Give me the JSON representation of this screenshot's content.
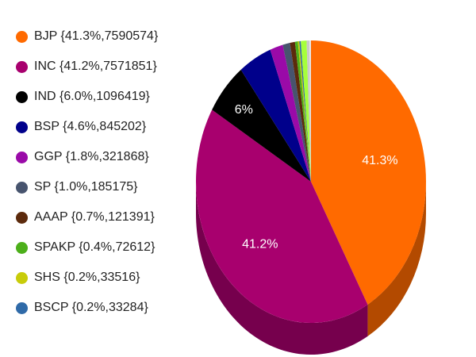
{
  "chart_data": {
    "type": "pie",
    "legend_position": "left",
    "slices": [
      {
        "label": "BJP {41.3%,7590574}",
        "party": "BJP",
        "percent": 41.3,
        "votes": 7590574,
        "color": "#ff6a00",
        "slice_label": "41.3%"
      },
      {
        "label": "INC {41.2%,7571851}",
        "party": "INC",
        "percent": 41.2,
        "votes": 7571851,
        "color": "#a8006e",
        "slice_label": "41.2%"
      },
      {
        "label": "IND {6.0%,1096419}",
        "party": "IND",
        "percent": 6.0,
        "votes": 1096419,
        "color": "#000000",
        "slice_label": "6%"
      },
      {
        "label": "BSP {4.6%,845202}",
        "party": "BSP",
        "percent": 4.6,
        "votes": 845202,
        "color": "#00008b",
        "slice_label": ""
      },
      {
        "label": "GGP {1.8%,321868}",
        "party": "GGP",
        "percent": 1.8,
        "votes": 321868,
        "color": "#9a0aa8",
        "slice_label": ""
      },
      {
        "label": "SP {1.0%,185175}",
        "party": "SP",
        "percent": 1.0,
        "votes": 185175,
        "color": "#47546e",
        "slice_label": ""
      },
      {
        "label": "AAAP {0.7%,121391}",
        "party": "AAAP",
        "percent": 0.7,
        "votes": 121391,
        "color": "#5c2a0c",
        "slice_label": ""
      },
      {
        "label": "SPAKP {0.4%,72612}",
        "party": "SPAKP",
        "percent": 0.4,
        "votes": 72612,
        "color": "#4caf1a",
        "slice_label": ""
      },
      {
        "label": "SHS {0.2%,33516}",
        "party": "SHS",
        "percent": 0.2,
        "votes": 33516,
        "color": "#c8cc0a",
        "slice_label": ""
      },
      {
        "label": "BSCP {0.2%,33284}",
        "party": "BSCP",
        "percent": 0.2,
        "votes": 33284,
        "color": "#2f6aa8",
        "slice_label": ""
      }
    ],
    "unlisted_remainder_slices": [
      {
        "percent": 0.8,
        "color": "#a6ff3a"
      },
      {
        "percent": 0.4,
        "color": "#c8c8c8"
      },
      {
        "percent": 0.2,
        "color": "#e8e8e8"
      }
    ]
  }
}
